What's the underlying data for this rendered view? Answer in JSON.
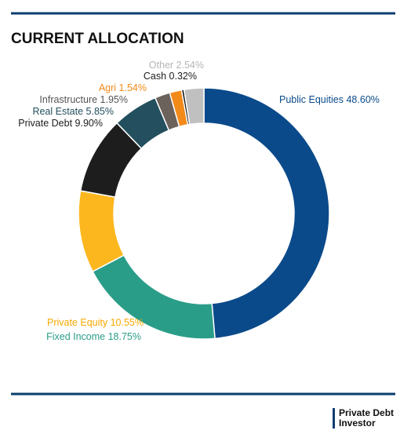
{
  "chart_data": {
    "type": "donut",
    "title": "CURRENT ALLOCATION",
    "categories": [
      "Public Equities",
      "Fixed Income",
      "Private Equity",
      "Private Debt",
      "Real Estate",
      "Infrastructure",
      "Agri",
      "Cash",
      "Other"
    ],
    "values": [
      48.6,
      18.75,
      10.55,
      9.9,
      5.85,
      1.95,
      1.54,
      0.32,
      2.54
    ],
    "value_labels": [
      "48.60%",
      "18.75%",
      "10.55%",
      "9.90%",
      "5.85%",
      "1.95%",
      "1.54%",
      "0.32%",
      "2.54%"
    ],
    "colors": [
      "#0b4a8a",
      "#2a9d88",
      "#fdb71e",
      "#1d1d1d",
      "#234f5e",
      "#6b625c",
      "#f28a1a",
      "#111111",
      "#c0c0c0"
    ],
    "label_colors": [
      "#0b4a8a",
      "#2a9d88",
      "#f5a800",
      "#1d1d1d",
      "#234f5e",
      "#555555",
      "#f28a1a",
      "#1d1d1d",
      "#b5b5b5"
    ]
  },
  "logo": [
    "Private Debt",
    "Investor"
  ]
}
